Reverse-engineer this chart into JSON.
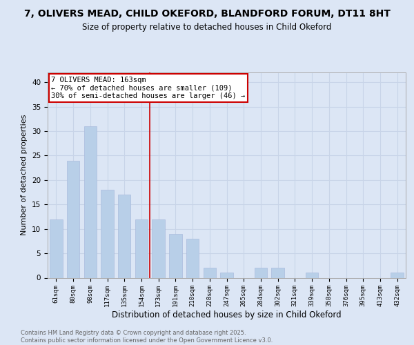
{
  "title": "7, OLIVERS MEAD, CHILD OKEFORD, BLANDFORD FORUM, DT11 8HT",
  "subtitle": "Size of property relative to detached houses in Child Okeford",
  "xlabel": "Distribution of detached houses by size in Child Okeford",
  "ylabel": "Number of detached properties",
  "categories": [
    "61sqm",
    "80sqm",
    "98sqm",
    "117sqm",
    "135sqm",
    "154sqm",
    "173sqm",
    "191sqm",
    "210sqm",
    "228sqm",
    "247sqm",
    "265sqm",
    "284sqm",
    "302sqm",
    "321sqm",
    "339sqm",
    "358sqm",
    "376sqm",
    "395sqm",
    "413sqm",
    "432sqm"
  ],
  "values": [
    12,
    24,
    31,
    18,
    17,
    12,
    12,
    9,
    8,
    2,
    1,
    0,
    2,
    2,
    0,
    1,
    0,
    0,
    0,
    0,
    1
  ],
  "bar_color": "#b8cfe8",
  "vline_x": 5.5,
  "vline_color": "#cc0000",
  "annotation_line1": "7 OLIVERS MEAD: 163sqm",
  "annotation_line2": "← 70% of detached houses are smaller (109)",
  "annotation_line3": "30% of semi-detached houses are larger (46) →",
  "annotation_box_color": "#cc0000",
  "annotation_box_fill": "#ffffff",
  "ylim": [
    0,
    42
  ],
  "yticks": [
    0,
    5,
    10,
    15,
    20,
    25,
    30,
    35,
    40
  ],
  "grid_color": "#c8d4e8",
  "bg_color": "#dce6f5",
  "plot_bg_color": "#dce6f5",
  "footer_text": "Contains HM Land Registry data © Crown copyright and database right 2025.\nContains public sector information licensed under the Open Government Licence v3.0.",
  "title_fontsize": 10,
  "subtitle_fontsize": 8.5,
  "xlabel_fontsize": 8.5,
  "ylabel_fontsize": 8
}
